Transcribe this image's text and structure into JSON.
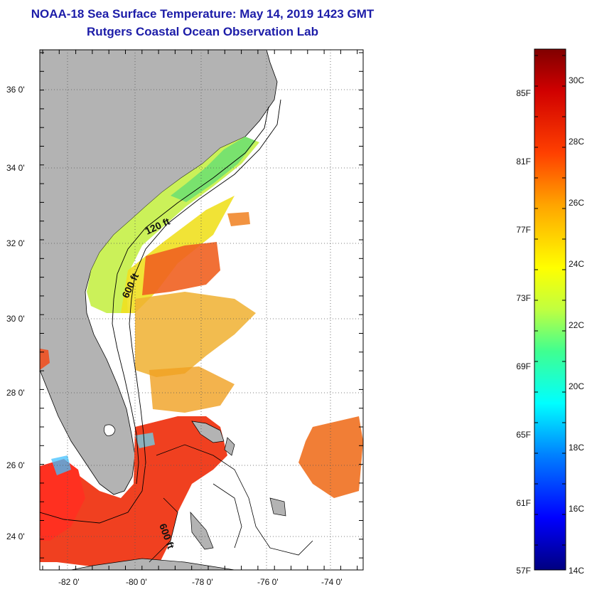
{
  "header": {
    "title": "NOAA-18 Sea Surface Temperature:  May 14, 2019 1423 GMT",
    "subtitle": "Rutgers Coastal Ocean Observation Lab"
  },
  "map": {
    "lat_labels": [
      "36 0'",
      "34 0'",
      "32 0'",
      "30 0'",
      "28 0'",
      "26 0'",
      "24 0'"
    ],
    "lon_labels": [
      "-82 0'",
      "-80 0'",
      "-78 0'",
      "-76 0'",
      "-74 0'"
    ],
    "contours": [
      "120 ft",
      "600 ft",
      "600 ft"
    ],
    "colors": {
      "land": "#b3b3b3",
      "cloud": "#ffffff",
      "outline": "#000000"
    }
  },
  "colorbar": {
    "fahrenheit_labels": [
      "85F",
      "81F",
      "77F",
      "73F",
      "69F",
      "65F",
      "61F",
      "57F"
    ],
    "celsius_labels": [
      "30C",
      "28C",
      "26C",
      "24C",
      "22C",
      "20C",
      "18C",
      "16C",
      "14C"
    ],
    "colors": [
      "#000080",
      "#0000ff",
      "#0080ff",
      "#00ffff",
      "#40ff90",
      "#c0ff40",
      "#ffff00",
      "#ffa500",
      "#ff4000",
      "#d00000",
      "#800000"
    ]
  }
}
